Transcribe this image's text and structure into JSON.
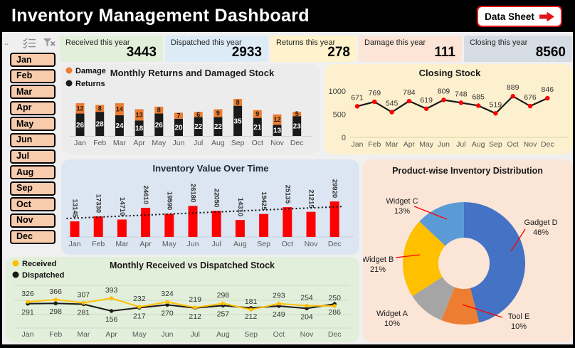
{
  "title": "Inventory Management Dashboard",
  "data_sheet_button": {
    "label": "Data Sheet",
    "icon": "right-arrow-icon"
  },
  "slicer": {
    "icons": [
      {
        "name": "multi-select-icon"
      },
      {
        "name": "clear-filter-icon"
      }
    ],
    "months": [
      "Jan",
      "Feb",
      "Mar",
      "Apr",
      "May",
      "Jun",
      "Jul",
      "Aug",
      "Sep",
      "Oct",
      "Nov",
      "Dec"
    ],
    "button_color": "#F8CBAD"
  },
  "kpis": [
    {
      "label": "Received this year",
      "value": "3443",
      "bg": "#E2EFDA"
    },
    {
      "label": "Dispatched this year",
      "value": "2933",
      "bg": "#DDEBF7"
    },
    {
      "label": "Returns this year",
      "value": "278",
      "bg": "#FFF2CC"
    },
    {
      "label": "Damage this year",
      "value": "111",
      "bg": "#FCE4D6"
    },
    {
      "label": "Closing this year",
      "value": "8560",
      "bg": "#D6DCE4"
    }
  ],
  "chart_data": [
    {
      "type": "bar",
      "stacked": true,
      "title": "Monthly Returns and Damaged Stock",
      "categories": [
        "Jan",
        "Feb",
        "Mar",
        "Apr",
        "May",
        "Jun",
        "Jul",
        "Aug",
        "Sep",
        "Oct",
        "Nov",
        "Dec"
      ],
      "series": [
        {
          "name": "Returns",
          "color": "#1a1a1a",
          "values": [
            26,
            28,
            24,
            18,
            26,
            20,
            22,
            22,
            35,
            21,
            13,
            23
          ]
        },
        {
          "name": "Damage",
          "color": "#ED7D31",
          "values": [
            12,
            8,
            14,
            13,
            8,
            7,
            6,
            9,
            8,
            9,
            12,
            5
          ]
        }
      ],
      "legend_position": "top-left",
      "panel_bg": "#ECECEC"
    },
    {
      "type": "line",
      "title": "Closing Stock",
      "categories": [
        "Jan",
        "Feb",
        "Mar",
        "Apr",
        "May",
        "Jun",
        "Jul",
        "Aug",
        "Sep",
        "Oct",
        "Nov",
        "Dec"
      ],
      "values": [
        671,
        769,
        545,
        784,
        619,
        809,
        748,
        685,
        519,
        889,
        676,
        846
      ],
      "line_color": "#1a1a1a",
      "marker_color": "#FF0000",
      "ylim": [
        0,
        1000
      ],
      "yticks": [
        0,
        500,
        1000
      ],
      "panel_bg": "#FDF0CE"
    },
    {
      "type": "bar",
      "title": "Inventory Value Over Time",
      "categories": [
        "Jan",
        "Feb",
        "Mar",
        "Apr",
        "May",
        "Jun",
        "Jul",
        "Aug",
        "Sep",
        "Oct",
        "Nov",
        "Dec"
      ],
      "values": [
        13145,
        17330,
        14710,
        24610,
        19590,
        26180,
        22050,
        14310,
        19425,
        25135,
        21215,
        29920
      ],
      "bar_color": "#FF0000",
      "trendline": "dotted",
      "panel_bg": "#DCE6F2"
    },
    {
      "type": "pie",
      "donut": true,
      "title": "Product-wise Inventory Distribution",
      "labels": [
        "Gadget D",
        "Tool E",
        "Widget A",
        "Widget B",
        "Widget C"
      ],
      "values": [
        46,
        10,
        10,
        21,
        13
      ],
      "colors": [
        "#4472C4",
        "#ED7D31",
        "#A5A5A5",
        "#FFC000",
        "#5B9BD5"
      ],
      "leader_line_color": "#FF0000",
      "panel_bg": "#FBE5D6"
    },
    {
      "type": "line",
      "title": "Monthly Received vs Dispatched Stock",
      "categories": [
        "Jan",
        "Feb",
        "Mar",
        "Apr",
        "May",
        "Jun",
        "Jul",
        "Aug",
        "Sep",
        "Oct",
        "Nov",
        "Dec"
      ],
      "series": [
        {
          "name": "Received",
          "color": "#FFC000",
          "values": [
            326,
            366,
            307,
            393,
            232,
            324,
            219,
            298,
            181,
            293,
            254,
            250
          ]
        },
        {
          "name": "Dispatched",
          "color": "#1a1a1a",
          "values": [
            291,
            298,
            281,
            156,
            217,
            270,
            212,
            257,
            212,
            249,
            204,
            286
          ]
        }
      ],
      "legend_position": "top-left",
      "panel_bg": "#E2EFDA"
    }
  ]
}
